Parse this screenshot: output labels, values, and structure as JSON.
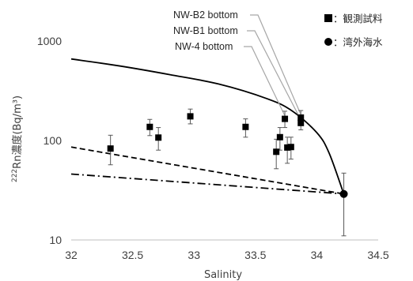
{
  "chart_data": {
    "type": "scatter",
    "xlabel": "Salinity",
    "ylabel_prefix": "222",
    "ylabel": "Rn濃度(Bq/m³)",
    "xlim": [
      32,
      34.5
    ],
    "ylim": [
      10,
      1000
    ],
    "yscale": "log",
    "x_ticks": [
      "32",
      "32.5",
      "33",
      "33.5",
      "34",
      "34.5"
    ],
    "y_ticks": [
      "10",
      "100",
      "1000"
    ],
    "grid": false,
    "legend_position": "top-right",
    "legend": [
      {
        "marker": "square",
        "label": "：観測試料"
      },
      {
        "marker": "circle",
        "label": "：湾外海水"
      }
    ],
    "series": [
      {
        "name": "観測試料",
        "marker": "square",
        "points": [
          {
            "x": 32.32,
            "y": 83,
            "lo": 57,
            "hi": 113
          },
          {
            "x": 32.64,
            "y": 137,
            "lo": 112,
            "hi": 163
          },
          {
            "x": 32.71,
            "y": 107,
            "lo": 80,
            "hi": 135
          },
          {
            "x": 32.97,
            "y": 175,
            "lo": 147,
            "hi": 207
          },
          {
            "x": 33.42,
            "y": 137,
            "lo": 108,
            "hi": 165
          },
          {
            "x": 33.67,
            "y": 77,
            "lo": 52,
            "hi": 103
          },
          {
            "x": 33.7,
            "y": 108,
            "lo": 80,
            "hi": 135
          },
          {
            "x": 33.74,
            "y": 165,
            "lo": 135,
            "hi": 197
          },
          {
            "x": 33.76,
            "y": 85,
            "lo": 59,
            "hi": 108
          },
          {
            "x": 33.79,
            "y": 86,
            "lo": 65,
            "hi": 108
          },
          {
            "x": 33.87,
            "y": 150,
            "lo": 128,
            "hi": 178
          },
          {
            "x": 33.87,
            "y": 170,
            "lo": 147,
            "hi": 200
          }
        ]
      },
      {
        "name": "湾外海水",
        "marker": "circle",
        "points": [
          {
            "x": 34.22,
            "y": 29,
            "lo": 11,
            "hi": 47
          }
        ]
      }
    ],
    "curves": [
      {
        "style": "solid",
        "points": [
          [
            32.0,
            660
          ],
          [
            32.4,
            560
          ],
          [
            32.8,
            460
          ],
          [
            33.2,
            370
          ],
          [
            33.6,
            262
          ],
          [
            33.8,
            198
          ],
          [
            34.0,
            120
          ],
          [
            34.1,
            75
          ],
          [
            34.22,
            29
          ]
        ]
      },
      {
        "style": "dashed",
        "points": [
          [
            32.0,
            86
          ],
          [
            34.22,
            29
          ]
        ]
      },
      {
        "style": "dashdot",
        "points": [
          [
            32.0,
            46
          ],
          [
            34.22,
            29
          ]
        ]
      }
    ],
    "annotations": [
      {
        "label": "NW-B2 bottom",
        "target": [
          33.87,
          170
        ]
      },
      {
        "label": "NW-B1 bottom",
        "target": [
          33.87,
          150
        ]
      },
      {
        "label": "NW-4 bottom",
        "target": [
          33.74,
          165
        ]
      }
    ]
  }
}
